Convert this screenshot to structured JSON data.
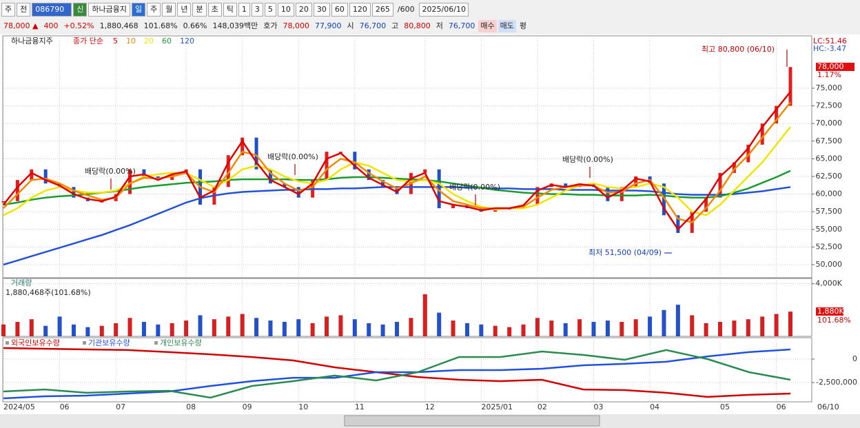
{
  "toolbar": {
    "items": [
      "주",
      "전",
      "086790",
      "신",
      "하나금융지",
      "일",
      "주",
      "월",
      "년",
      "분",
      "초",
      "틱",
      "1",
      "3",
      "5",
      "10",
      "20",
      "30",
      "60",
      "120",
      "265",
      "/600",
      "2025/06/10"
    ]
  },
  "info_bar": {
    "items": [
      "78,000 ▲",
      "400",
      "+0.52%",
      "1,880,468",
      "101.68%",
      "0.66%",
      "148,039백만",
      "호가",
      "78,000",
      "77,900",
      "시",
      "76,700",
      "고",
      "80,800",
      "저",
      "76,700",
      "매수",
      "매도",
      "평"
    ]
  },
  "chart_data": [
    {
      "type": "line",
      "title": "하나금융지주",
      "legend_label": "종가 단순",
      "x": [
        "2024/05",
        null,
        null,
        null,
        "06",
        null,
        null,
        null,
        "07",
        null,
        null,
        null,
        null,
        "08",
        null,
        null,
        null,
        "09",
        null,
        null,
        null,
        "10",
        null,
        null,
        null,
        "11",
        null,
        null,
        null,
        null,
        "12",
        null,
        null,
        null,
        "2025/01",
        null,
        null,
        null,
        "02",
        null,
        null,
        null,
        "03",
        null,
        null,
        null,
        "04",
        null,
        null,
        null,
        null,
        "05",
        null,
        null,
        null,
        "06",
        null
      ],
      "x_end_label": "06/10",
      "close": [
        59000,
        62000,
        63500,
        61500,
        61000,
        59500,
        59000,
        59000,
        60000,
        63500,
        62500,
        62000,
        63000,
        63500,
        58500,
        61000,
        65500,
        68000,
        63500,
        61500,
        61000,
        59500,
        62000,
        66000,
        66000,
        63500,
        62000,
        61000,
        60000,
        63000,
        63500,
        58000,
        58500,
        58000,
        57500,
        58000,
        58000,
        58500,
        61000,
        61500,
        61000,
        61500,
        61000,
        59000,
        61000,
        62500,
        61500,
        57000,
        54500,
        57500,
        59500,
        63000,
        64500,
        67000,
        70000,
        72500,
        78000
      ],
      "series": [
        {
          "name": "5",
          "color": "#e00000",
          "values": [
            58500,
            61000,
            63000,
            62000,
            61200,
            60000,
            59300,
            59000,
            59600,
            62500,
            62800,
            62000,
            62800,
            63200,
            59500,
            60500,
            64500,
            67500,
            64500,
            62000,
            61000,
            60000,
            61500,
            65000,
            65800,
            64000,
            62300,
            61300,
            60300,
            62200,
            63000,
            59000,
            58500,
            58200,
            57700,
            58000,
            58000,
            58400,
            60500,
            61300,
            61000,
            61400,
            61200,
            59500,
            60500,
            62200,
            61800,
            58000,
            55000,
            57000,
            59300,
            62500,
            64300,
            66500,
            69500,
            72000,
            74500
          ]
        },
        {
          "name": "10",
          "color": "#f08a00",
          "values": [
            58000,
            60000,
            62000,
            62200,
            61500,
            60500,
            59800,
            59200,
            59500,
            61500,
            62300,
            62200,
            62500,
            63000,
            61000,
            60300,
            63000,
            66000,
            65500,
            63000,
            61500,
            60500,
            61000,
            63500,
            65000,
            64500,
            63000,
            61800,
            60800,
            61500,
            62500,
            60500,
            59000,
            58500,
            58000,
            58000,
            58000,
            58200,
            59500,
            60600,
            61000,
            61200,
            61200,
            60200,
            60300,
            61500,
            62000,
            59500,
            56500,
            56000,
            58000,
            60500,
            63500,
            65500,
            68000,
            70500,
            73000
          ]
        },
        {
          "name": "20",
          "color": "#f2e400",
          "values": [
            57000,
            58000,
            59500,
            60500,
            61000,
            60500,
            60200,
            60200,
            60500,
            61500,
            62500,
            62800,
            63000,
            63000,
            62000,
            61000,
            62000,
            63500,
            64000,
            63500,
            62500,
            61800,
            61500,
            62000,
            63500,
            64500,
            64000,
            63000,
            62000,
            61800,
            62000,
            61500,
            60000,
            59000,
            58200,
            57800,
            58000,
            58000,
            58500,
            59500,
            60500,
            61200,
            61500,
            61000,
            60800,
            61000,
            61500,
            61000,
            59500,
            57500,
            57000,
            58500,
            60500,
            62500,
            64500,
            67000,
            69500
          ]
        },
        {
          "name": "60",
          "color": "#1a9a30",
          "values": [
            58500,
            58800,
            59200,
            59500,
            59700,
            59800,
            60000,
            60200,
            60400,
            60700,
            61000,
            61200,
            61400,
            61600,
            61700,
            61800,
            62000,
            62100,
            62100,
            62100,
            62100,
            62000,
            62000,
            62100,
            62300,
            62400,
            62400,
            62300,
            62200,
            62100,
            62000,
            61800,
            61500,
            61200,
            60900,
            60600,
            60400,
            60200,
            60100,
            60000,
            60000,
            59900,
            59900,
            59800,
            59800,
            59800,
            59900,
            59800,
            59600,
            59500,
            59500,
            59700,
            60200,
            60800,
            61600,
            62400,
            63300
          ]
        },
        {
          "name": "120",
          "color": "#2452d6",
          "values": [
            50000,
            50600,
            51200,
            51800,
            52400,
            53000,
            53600,
            54200,
            54900,
            55600,
            56400,
            57200,
            58000,
            58800,
            59400,
            59800,
            60100,
            60300,
            60400,
            60500,
            60600,
            60600,
            60700,
            60700,
            60800,
            60800,
            60900,
            61000,
            61000,
            61000,
            61000,
            61000,
            61000,
            60900,
            60900,
            60800,
            60800,
            60700,
            60700,
            60700,
            60600,
            60600,
            60600,
            60500,
            60500,
            60500,
            60400,
            60200,
            60000,
            59900,
            59900,
            59900,
            60000,
            60200,
            60400,
            60700,
            61000
          ]
        }
      ],
      "ylim": [
        48145,
        82420
      ],
      "yticks": [
        {
          "value": 50000,
          "label": "50,000"
        },
        {
          "value": 52500,
          "label": "52,500"
        },
        {
          "value": 55000,
          "label": "55,000"
        },
        {
          "value": 57500,
          "label": "57,500"
        },
        {
          "value": 60000,
          "label": "60,000"
        },
        {
          "value": 62500,
          "label": "62,500"
        },
        {
          "value": 65000,
          "label": "65,000"
        },
        {
          "value": 67500,
          "label": "67,500"
        },
        {
          "value": 70000,
          "label": "70,000"
        },
        {
          "value": 72500,
          "label": "72,500"
        },
        {
          "value": 75000,
          "label": "75,000"
        }
      ],
      "right_labels": [
        "LC:51.46",
        "HC:-3.47",
        "78,000",
        "1.17%"
      ],
      "annotations": [
        "최고 80,800 (06/10)",
        "최저 51,500 (04/09)",
        "배당락(0.00%)",
        "배당락(0.00%)",
        "배당락(0.00%)",
        "배당락(0.00%)"
      ],
      "grid": true
    },
    {
      "type": "bar",
      "title": "거래량",
      "subtitle": "1,880,468주(101.68%)",
      "values": [
        900,
        1100,
        1300,
        800,
        1500,
        900,
        700,
        800,
        1000,
        1400,
        1100,
        900,
        1000,
        1200,
        1600,
        1300,
        1500,
        1700,
        1400,
        1200,
        1100,
        1300,
        1000,
        1500,
        1600,
        1300,
        1000,
        900,
        1100,
        1400,
        3200,
        1800,
        1200,
        1000,
        900,
        800,
        700,
        900,
        1400,
        1200,
        1000,
        1300,
        1100,
        1200,
        1100,
        1300,
        1500,
        2000,
        2400,
        1600,
        1000,
        1100,
        1200,
        1300,
        1500,
        1700,
        1880
      ],
      "up_color": "#d42020",
      "down_color": "#2450c8",
      "ylim": [
        0,
        4400
      ],
      "yticks": [
        {
          "value": 4000,
          "label": "4,000K"
        }
      ],
      "right_labels": [
        "1,880K",
        "101.68%"
      ]
    },
    {
      "type": "line",
      "series": [
        {
          "name": "외국인보유수량",
          "color": "#d00000",
          "values": [
            1180000,
            1100000,
            1030000,
            960000,
            740000,
            510000,
            220000,
            -150000,
            -880000,
            -1400000,
            -1910000,
            -2210000,
            -2350000,
            -2210000,
            -3240000,
            -3310000,
            -3600000,
            -4040000,
            -3820000,
            -3680000
          ]
        },
        {
          "name": "기관보유수량",
          "color": "#2050e0",
          "values": [
            -4190000,
            -3970000,
            -3900000,
            -3680000,
            -3460000,
            -2870000,
            -2350000,
            -1990000,
            -1990000,
            -1400000,
            -1400000,
            -1180000,
            -1180000,
            -1030000,
            -660000,
            -510000,
            -290000,
            290000,
            740000,
            1030000
          ]
        },
        {
          "name": "개인보유수량",
          "color": "#2a8a50",
          "values": [
            -3460000,
            -3240000,
            -3600000,
            -3460000,
            -3380000,
            -4120000,
            -2870000,
            -2350000,
            -1760000,
            -2280000,
            -1400000,
            220000,
            220000,
            810000,
            440000,
            -70000,
            960000,
            0,
            -1400000,
            -2210000
          ]
        }
      ],
      "ylim": [
        -4560000,
        2280000
      ],
      "yticks": [
        0,
        {
          "value": -2500000,
          "label": "-2,500,000"
        }
      ]
    }
  ]
}
